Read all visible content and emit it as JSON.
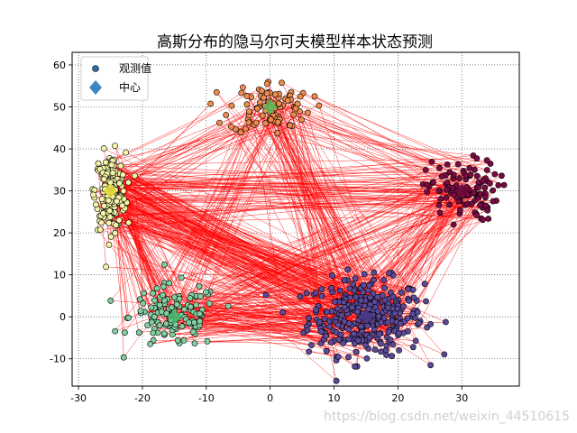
{
  "chart_data": {
    "type": "scatter",
    "title": "高斯分布的隐马尔可夫模型样本状态预测",
    "xlim": [
      -31,
      39
    ],
    "ylim": [
      -16.5,
      63
    ],
    "x_ticks": [
      -30,
      -20,
      -10,
      0,
      10,
      20,
      30
    ],
    "y_ticks": [
      -10,
      0,
      10,
      20,
      30,
      40,
      50,
      60
    ],
    "grid": true,
    "grid_style": "dotted",
    "legend_position": "top-left",
    "legend": [
      {
        "label": "观测值",
        "marker": "circle",
        "color": "#1f77b4"
      },
      {
        "label": "中心",
        "marker": "diamond",
        "color": "#3a86c8"
      }
    ],
    "line_color": "#ff0000",
    "clusters": [
      {
        "state": 0,
        "center": [
          15,
          0
        ],
        "spread": [
          4.5,
          4.5
        ],
        "count": 340,
        "color": "#5b4a9a"
      },
      {
        "state": 1,
        "center": [
          -15,
          0
        ],
        "spread": [
          3.5,
          3.8
        ],
        "count": 130,
        "color": "#7fcfa0"
      },
      {
        "state": 2,
        "center": [
          -25,
          30
        ],
        "spread": [
          1.2,
          4.5
        ],
        "count": 190,
        "color": "#f5f5a8"
      },
      {
        "state": 3,
        "center": [
          0,
          50
        ],
        "spread": [
          3.2,
          3.2
        ],
        "count": 90,
        "color": "#ef8c4c"
      },
      {
        "state": 4,
        "center": [
          30,
          30
        ],
        "spread": [
          2.8,
          3.6
        ],
        "count": 110,
        "color": "#7a0a44"
      }
    ],
    "centers": [
      {
        "x": 15,
        "y": 0,
        "color": "#4a3a8a"
      },
      {
        "x": -15,
        "y": 0,
        "color": "#4bb56a"
      },
      {
        "x": -25,
        "y": 30,
        "color": "#e8d83a"
      },
      {
        "x": 0,
        "y": 50,
        "color": "#5cb85c"
      },
      {
        "x": 30,
        "y": 30,
        "color": "#6a0a3a"
      }
    ]
  },
  "watermark": "https://blog.csdn.net/weixin_44510615"
}
